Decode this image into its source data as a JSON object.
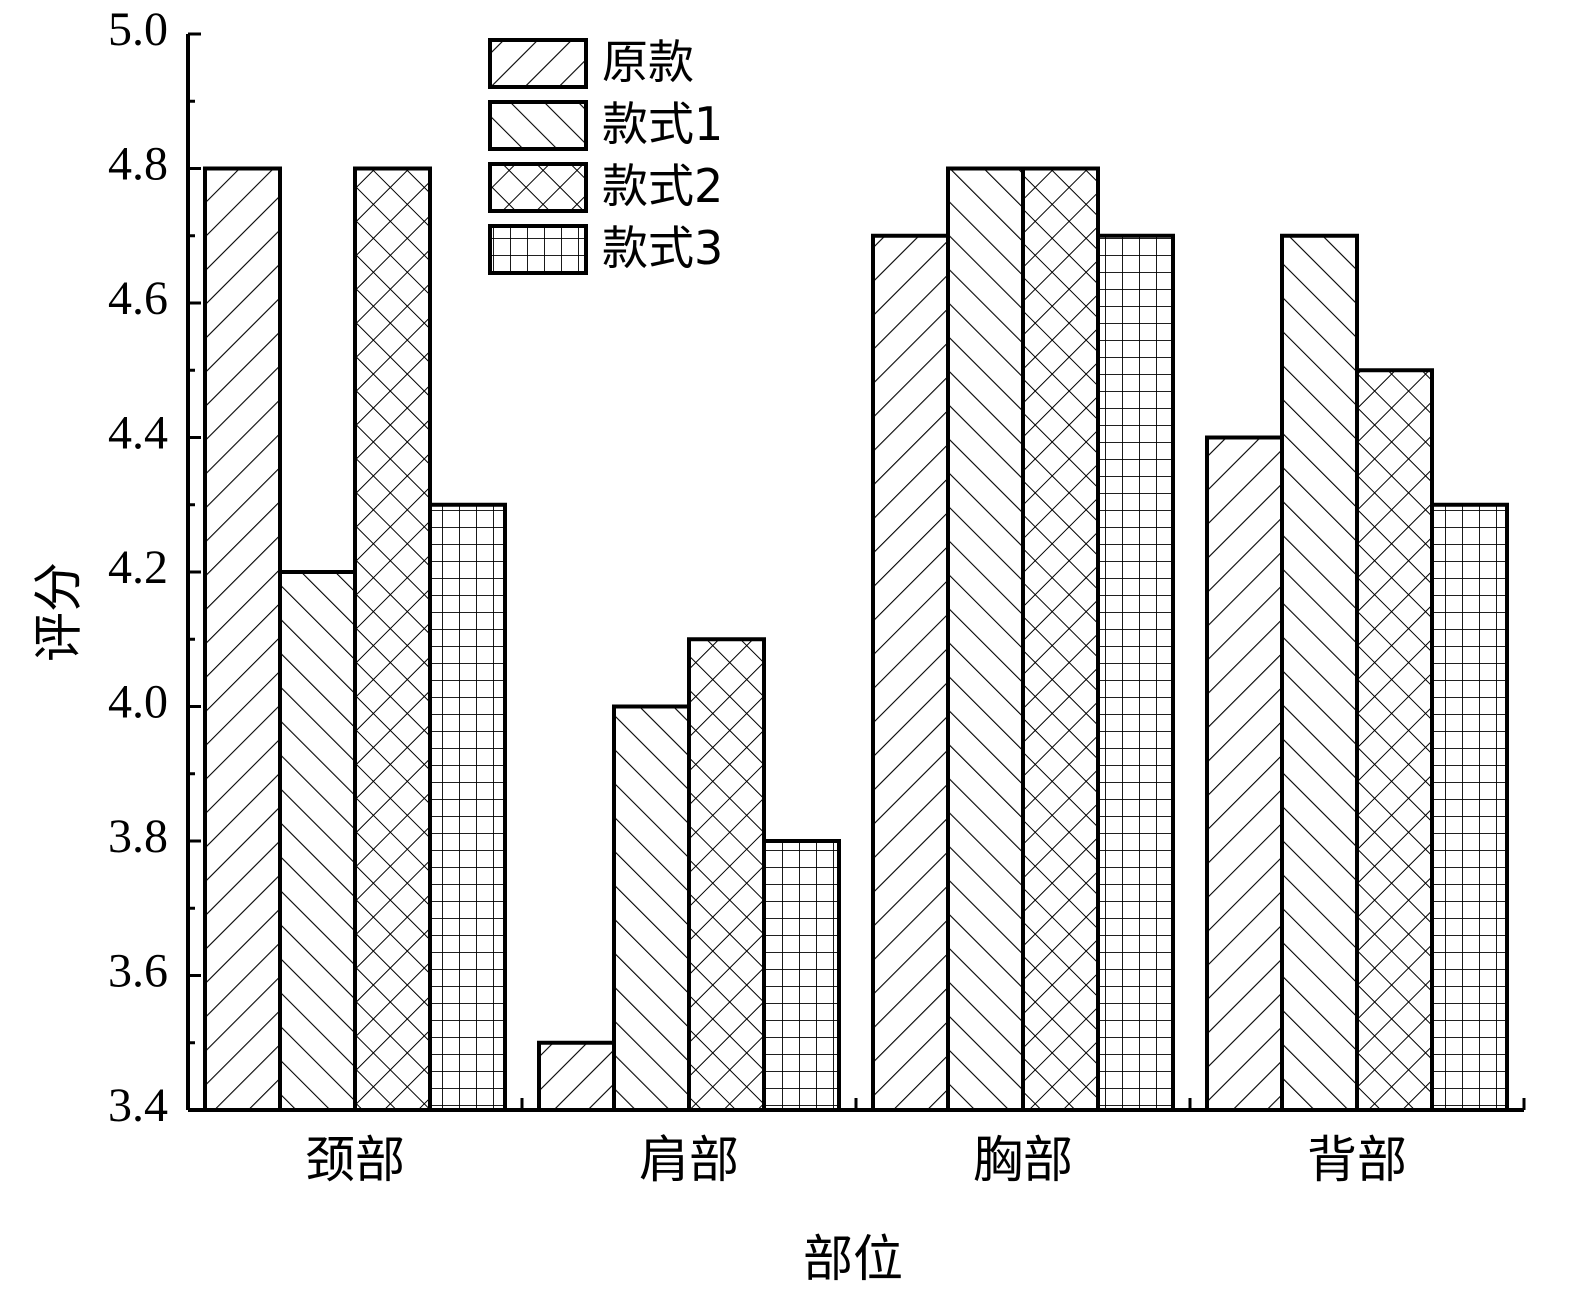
{
  "chart_data": {
    "type": "bar",
    "categories": [
      "颈部",
      "肩部",
      "胸部",
      "背部"
    ],
    "series": [
      {
        "name": "原款",
        "pattern": "diag-up",
        "values": [
          4.8,
          3.5,
          4.7,
          4.4
        ]
      },
      {
        "name": "款式1",
        "pattern": "diag-down",
        "values": [
          4.2,
          4.0,
          4.8,
          4.7
        ]
      },
      {
        "name": "款式2",
        "pattern": "crosshatch",
        "values": [
          4.8,
          4.1,
          4.8,
          4.5
        ]
      },
      {
        "name": "款式3",
        "pattern": "grid",
        "values": [
          4.3,
          3.8,
          4.7,
          4.3
        ]
      }
    ],
    "title": "",
    "xlabel": "部位",
    "ylabel": "评分",
    "ylim": [
      3.4,
      5.0
    ],
    "yticks": [
      "3.4",
      "3.6",
      "3.8",
      "4.0",
      "4.2",
      "4.4",
      "4.6",
      "4.8",
      "5.0"
    ],
    "legend_position": "top-left",
    "grid": false,
    "colors": {
      "bar_fill": "#ffffff",
      "stroke": "#000000"
    }
  }
}
